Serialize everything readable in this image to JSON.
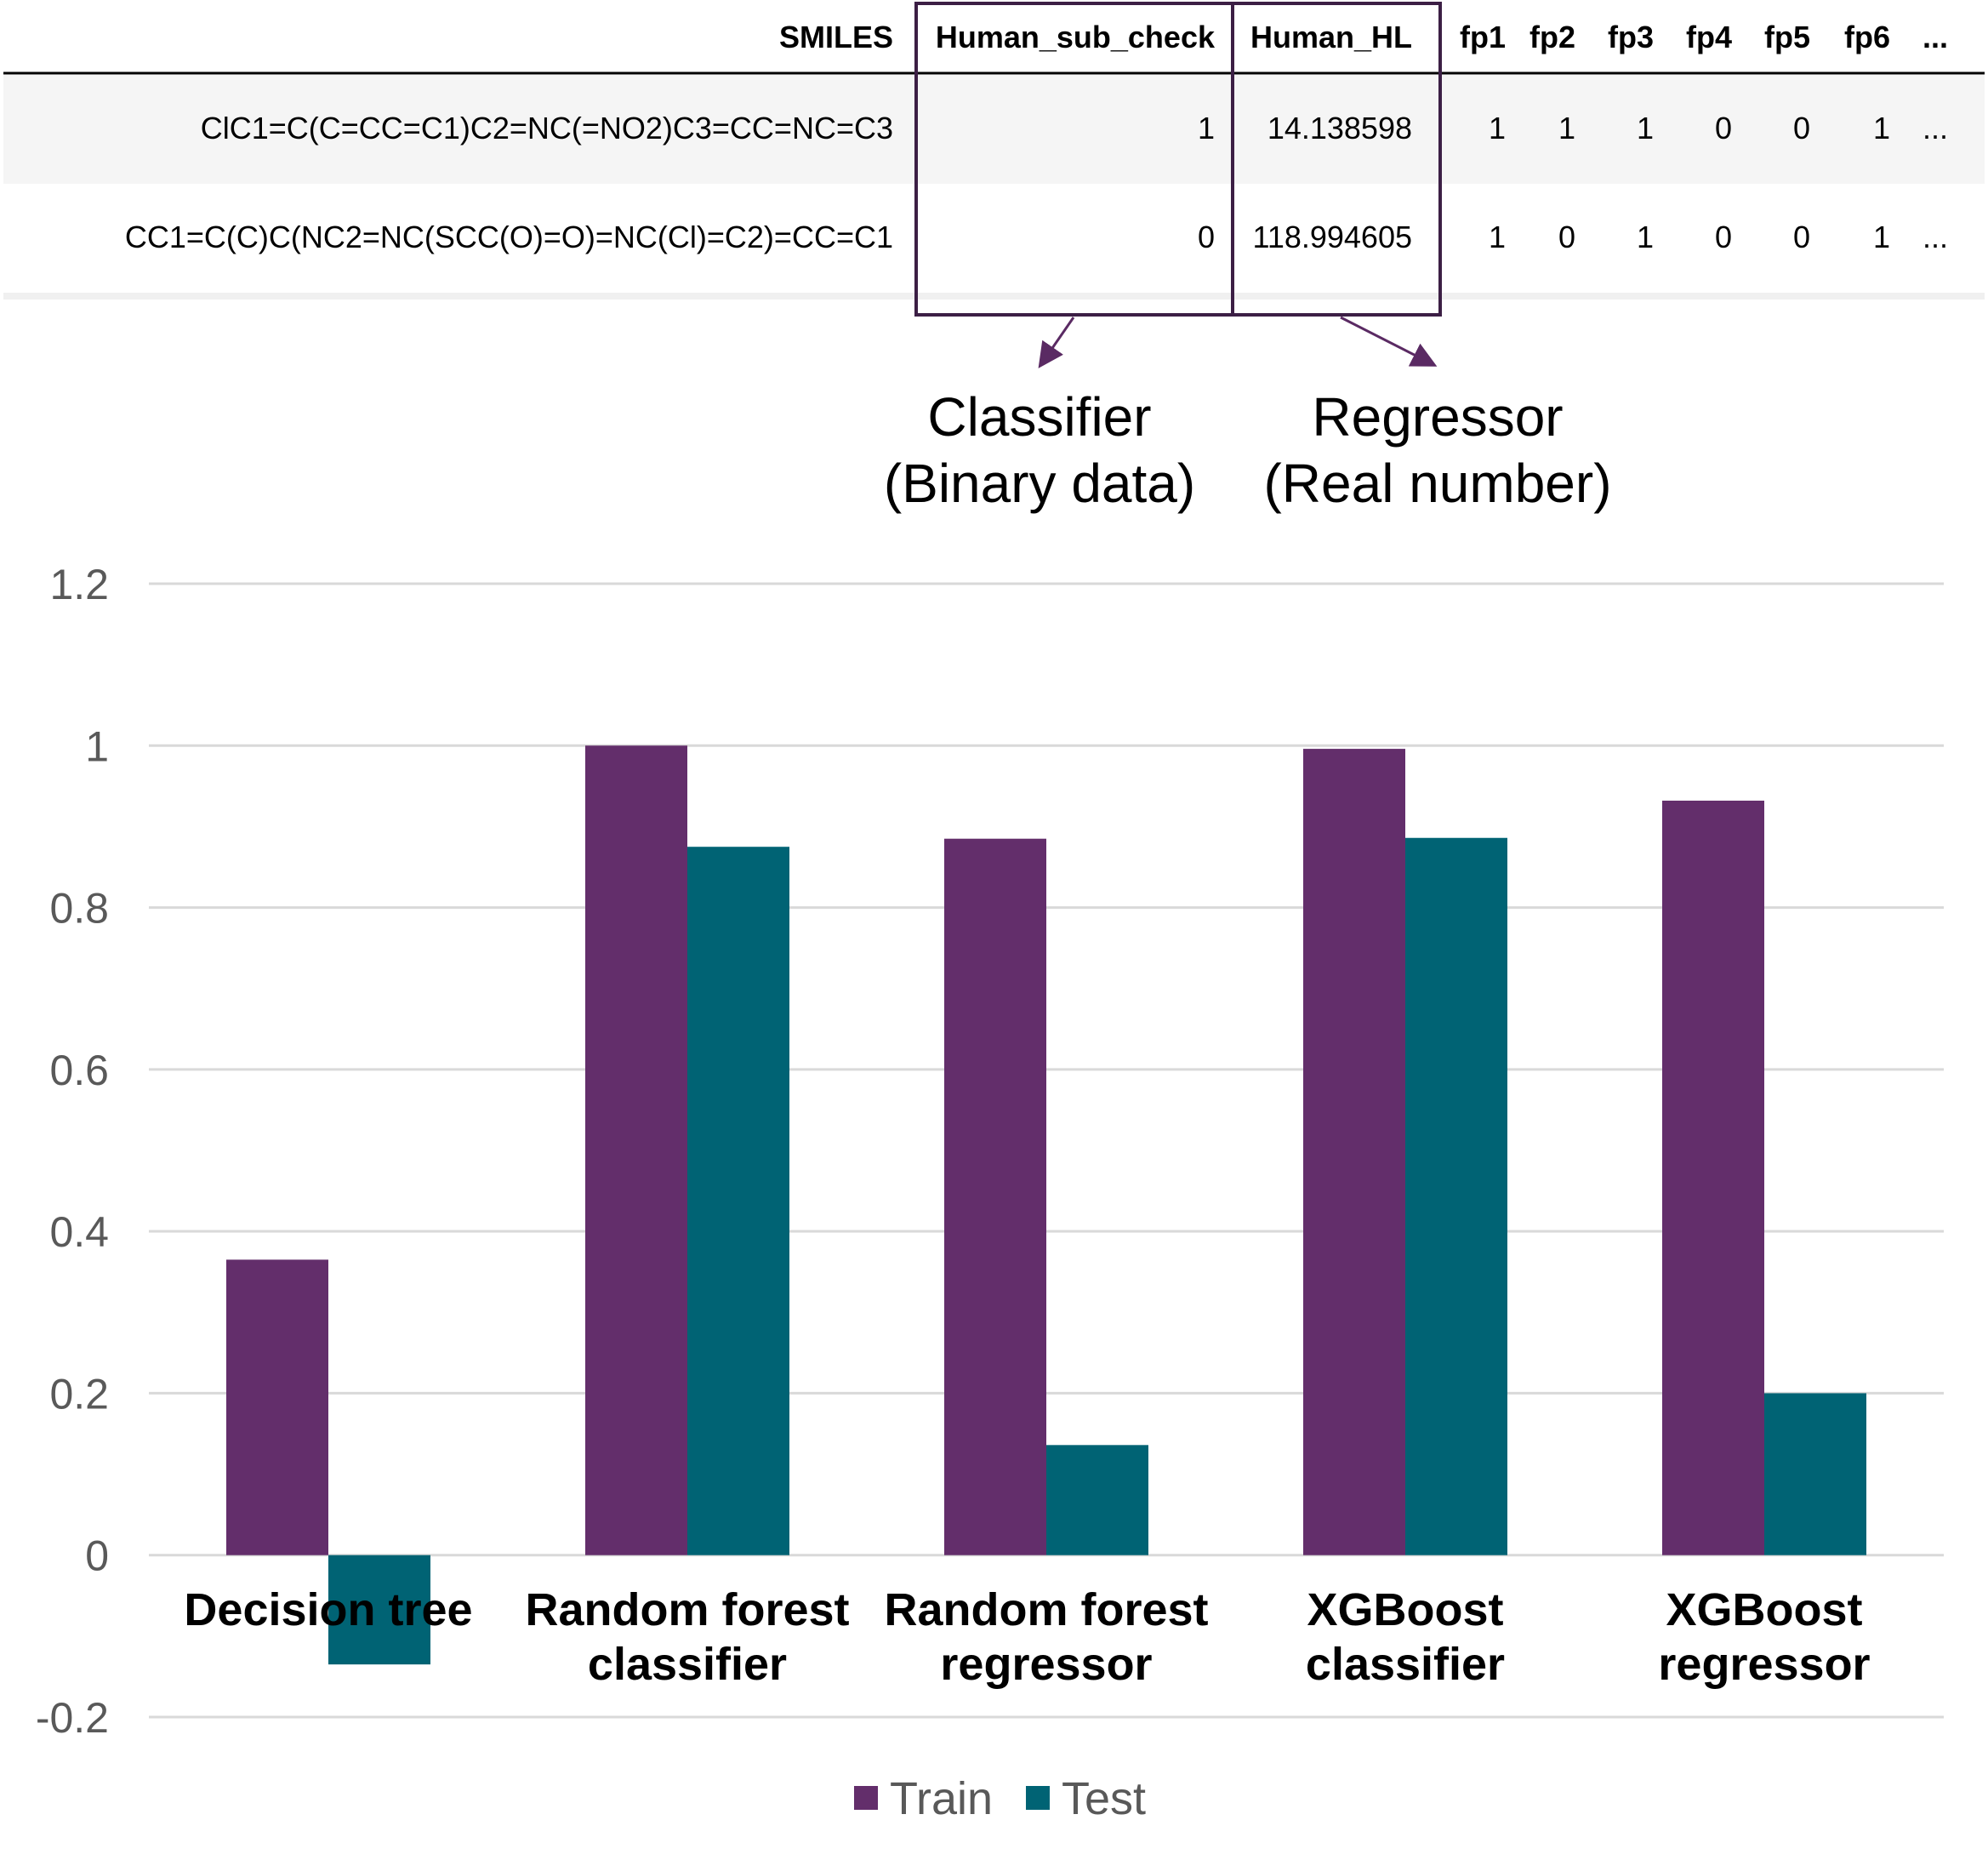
{
  "table": {
    "headers": [
      "SMILES",
      "Human_sub_check",
      "Human_HL",
      "fp1",
      "fp2",
      "fp3",
      "fp4",
      "fp5",
      "fp6",
      "..."
    ],
    "rows": [
      [
        "ClC1=C(C=CC=C1)C2=NC(=NO2)C3=CC=NC=C3",
        "1",
        "14.138598",
        "1",
        "1",
        "1",
        "0",
        "0",
        "1",
        "..."
      ],
      [
        "CC1=C(C)C(NC2=NC(SCC(O)=O)=NC(Cl)=C2)=CC=C1",
        "0",
        "118.994605",
        "1",
        "0",
        "1",
        "0",
        "0",
        "1",
        "..."
      ]
    ]
  },
  "annotations": {
    "classifier": {
      "line1": "Classifier",
      "line2": "(Binary data)"
    },
    "regressor": {
      "line1": "Regressor",
      "line2": "(Real number)"
    }
  },
  "colors": {
    "train": "#632E6B",
    "test": "#006374",
    "box": "#3C1F45",
    "grid": "#D9D9D9",
    "row_shade": "#F5F5F5"
  },
  "chart_data": {
    "type": "bar",
    "categories": [
      [
        "Decision tree"
      ],
      [
        "Random forest",
        "classifier"
      ],
      [
        "Random forest",
        "regressor"
      ],
      [
        "XGBoost",
        "classifier"
      ],
      [
        "XGBoost",
        "regressor"
      ]
    ],
    "series": [
      {
        "name": "Train",
        "values": [
          0.365,
          1.0,
          0.885,
          0.996,
          0.932
        ]
      },
      {
        "name": "Test",
        "values": [
          -0.135,
          0.875,
          0.136,
          0.886,
          0.2
        ]
      }
    ],
    "ylim": [
      -0.2,
      1.2
    ],
    "yticks": [
      1.2,
      1,
      0.8,
      0.6,
      0.4,
      0.2,
      0,
      -0.2
    ],
    "ytick_labels": [
      "1.2",
      "1",
      "0.8",
      "0.6",
      "0.4",
      "0.2",
      "0",
      "-0.2"
    ],
    "grid": true,
    "legend": "bottom"
  }
}
